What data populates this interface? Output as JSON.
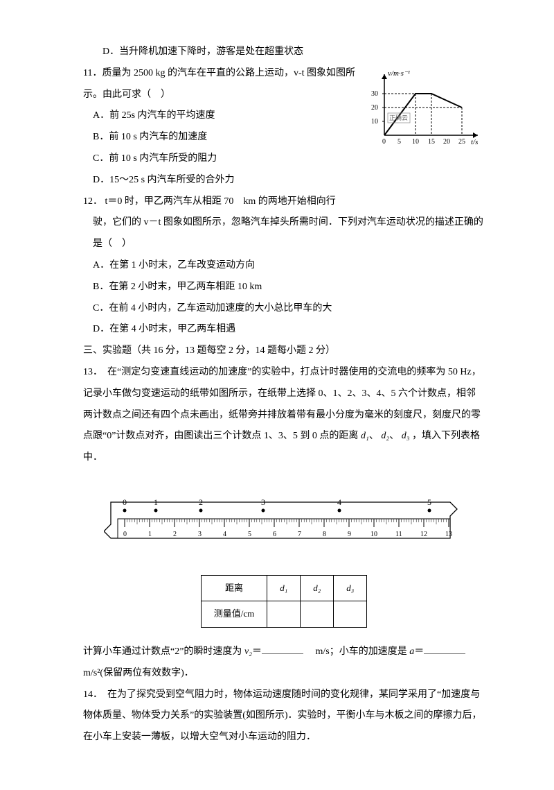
{
  "q10": {
    "D": "D．当升降机加速下降时，游客是处在超重状态"
  },
  "q11": {
    "stem": "11．质量为 2500 kg 的汽车在平直的公路上运动，v-t 图象如图所示。由此可求（　）",
    "A": "A．前 25s 内汽车的平均速度",
    "B": "B．前 10 s 内汽车的加速度",
    "C": "C．前 10 s 内汽车所受的阻力",
    "D": "D．15～25 s 内汽车所受的合外力",
    "graph": {
      "ylabel": "v/m·s⁻¹",
      "xlabel": "t/s",
      "yticks": [
        "10",
        "20",
        "30"
      ],
      "xticks": [
        "0",
        "5",
        "10",
        "15",
        "20",
        "25"
      ],
      "watermark": "正确云"
    }
  },
  "q12": {
    "stem1": "12． t＝0 时，甲乙两汽车从相距 70　km 的两地开始相向行",
    "stem2": "驶，它们的 v－t 图象如图所示，忽略汽车掉头所需时间．下列对汽车运动状况的描述正确的是（　）",
    "A": "A．在第 1 小时末，乙车改变运动方向",
    "B": "B．在第 2 小时末，甲乙两车相距 10 km",
    "C": "C．在前 4 小时内，乙车运动加速度的大小总比甲车的大",
    "D": "D．在第 4 小时末，甲乙两车相遇"
  },
  "section3": "三、实验题（共 16 分，13 题每空 2 分，14 题每小题 2 分）",
  "q13": {
    "p1": "13．　在“测定匀变速直线运动的加速度”的实验中，打点计时器使用的交流电的频率为 50 Hz，记录小车做匀变速运动的纸带如图所示，在纸带上选择 0、1、2、3、4、5 六个计数点，相邻两计数点之间还有四个点未画出，纸带旁并排放着带有最小分度为毫米的刻度尺，刻度尺的零点跟“0”计数点对齐，由图读出三个计数点 1、3、5 到 0 点的距离 ",
    "p1tail": "，填入下列表格中．",
    "ruler": {
      "top_marks": [
        "0",
        "1",
        "2",
        "3",
        "4",
        "5"
      ],
      "bottom_marks": [
        "0",
        "1",
        "2",
        "3",
        "4",
        "5",
        "6",
        "7",
        "8",
        "9",
        "10",
        "11",
        "12",
        "13"
      ]
    },
    "table": {
      "r1c1": "距离",
      "r2c1": "测量值/cm"
    },
    "p2a": "计算小车通过计数点“2”的瞬时速度为 ",
    "p2b": "　m/s；小车的加速度是 ",
    "p2c": " m/s²(保留两位有效数字)．"
  },
  "q14": {
    "p": "14．　在为了探究受到空气阻力时，物体运动速度随时间的变化规律，某同学采用了“加速度与物体质量、物体受力关系”的实验装置(如图所示)．实验时，平衡小车与木板之间的摩擦力后，在小车上安装一薄板，以增大空气对小车运动的阻力．"
  },
  "sym": {
    "d1": "d₁",
    "d2": "d₂",
    "d3": "d₃",
    "v2": "v₂",
    "a": "a"
  }
}
